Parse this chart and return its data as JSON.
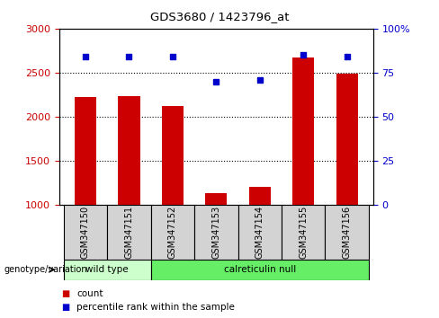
{
  "title": "GDS3680 / 1423796_at",
  "samples": [
    "GSM347150",
    "GSM347151",
    "GSM347152",
    "GSM347153",
    "GSM347154",
    "GSM347155",
    "GSM347156"
  ],
  "counts": [
    2230,
    2240,
    2120,
    1140,
    1205,
    2670,
    2490
  ],
  "percentiles": [
    84,
    84,
    84,
    70,
    71,
    85,
    84
  ],
  "bar_color": "#cc0000",
  "dot_color": "#0000cc",
  "ylim_left": [
    1000,
    3000
  ],
  "ylim_right": [
    0,
    100
  ],
  "yticks_left": [
    1000,
    1500,
    2000,
    2500,
    3000
  ],
  "yticks_right": [
    0,
    25,
    50,
    75,
    100
  ],
  "ytick_labels_right": [
    "0",
    "25",
    "50",
    "75",
    "100%"
  ],
  "grid_values": [
    1500,
    2000,
    2500
  ],
  "wt_color": "#ccffcc",
  "cn_color": "#66ee66",
  "group_label_prefix": "genotype/variation",
  "legend_count_label": "count",
  "legend_percentile_label": "percentile rank within the sample",
  "background_color": "#ffffff",
  "bar_width": 0.5
}
